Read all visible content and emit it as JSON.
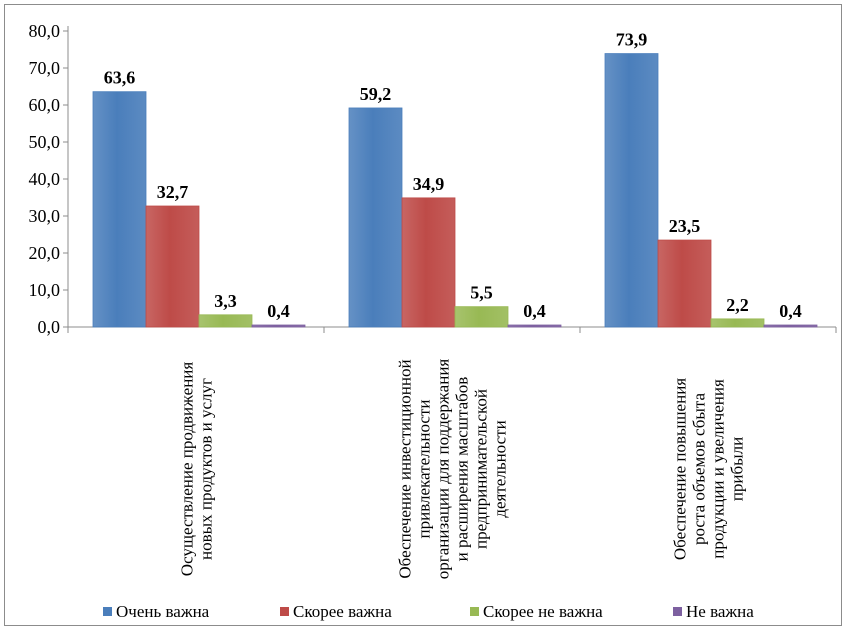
{
  "chart_data": {
    "type": "bar",
    "title": "",
    "xlabel": "",
    "ylabel": "",
    "ylim": [
      0,
      80
    ],
    "yticks": [
      "0,0",
      "10,0",
      "20,0",
      "30,0",
      "40,0",
      "50,0",
      "60,0",
      "70,0",
      "80,0"
    ],
    "grid": false,
    "legend_position": "bottom",
    "categories": [
      [
        "Осуществление продвижения",
        "новых продуктов и услуг"
      ],
      [
        "Обеспечение инвестиционной",
        "привлекательности",
        "организации для поддержания",
        "и расширения масштабов",
        "предпринимательской",
        "деятельности"
      ],
      [
        "Обеспечение повышения",
        "роста объемов сбыта",
        "продукции и увеличения",
        "прибыли"
      ]
    ],
    "series": [
      {
        "name": "Очень важна",
        "color": "#4a7ebb",
        "values": [
          63.6,
          59.2,
          73.9
        ],
        "labels": [
          "63,6",
          "59,2",
          "73,9"
        ]
      },
      {
        "name": "Скорее важна",
        "color": "#be4b48",
        "values": [
          32.7,
          34.9,
          23.5
        ],
        "labels": [
          "32,7",
          "34,9",
          "23,5"
        ]
      },
      {
        "name": "Скорее не важна",
        "color": "#98b954",
        "values": [
          3.3,
          5.5,
          2.2
        ],
        "labels": [
          "3,3",
          "5,5",
          "2,2"
        ]
      },
      {
        "name": "Не важна",
        "color": "#7d60a0",
        "values": [
          0.4,
          0.4,
          0.4
        ],
        "labels": [
          "0,4",
          "0,4",
          "0,4"
        ]
      }
    ]
  }
}
